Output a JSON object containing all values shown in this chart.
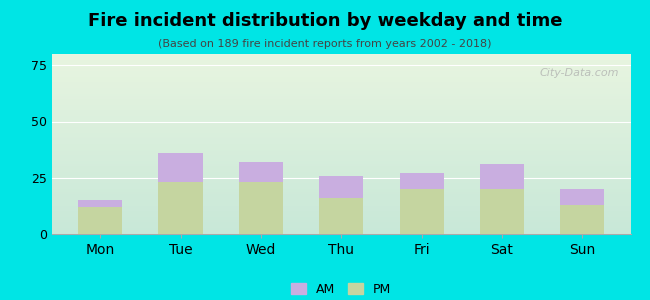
{
  "title": "Fire incident distribution by weekday and time",
  "subtitle": "(Based on 189 fire incident reports from years 2002 - 2018)",
  "categories": [
    "Mon",
    "Tue",
    "Wed",
    "Thu",
    "Fri",
    "Sat",
    "Sun"
  ],
  "pm_values": [
    12,
    23,
    23,
    16,
    20,
    20,
    13
  ],
  "am_values": [
    3,
    13,
    9,
    10,
    7,
    11,
    7
  ],
  "am_color": "#c9aee0",
  "pm_color": "#c5d5a0",
  "background_color": "#00e5e5",
  "plot_bg_gradient_top": "#e8f5e0",
  "plot_bg_gradient_bottom": "#d0ede8",
  "ylim": [
    0,
    80
  ],
  "yticks": [
    0,
    25,
    50,
    75
  ],
  "bar_width": 0.55,
  "watermark": "City-Data.com"
}
